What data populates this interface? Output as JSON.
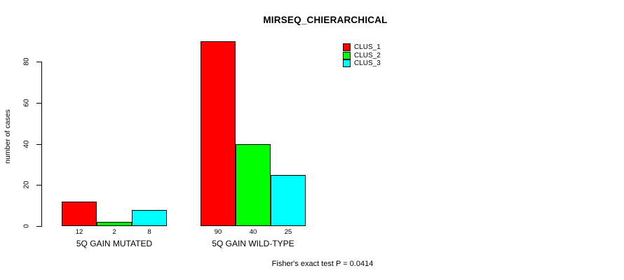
{
  "chart_data": {
    "type": "bar",
    "title": "MIRSEQ_CHIERARCHICAL",
    "xlabel": "",
    "ylabel": "number of cases",
    "ylim": [
      0,
      80
    ],
    "yticks": [
      0,
      20,
      40,
      60,
      80
    ],
    "grid": false,
    "legend_position": "top-right",
    "categories": [
      "5Q GAIN MUTATED",
      "5Q GAIN WILD-TYPE"
    ],
    "series": [
      {
        "name": "CLUS_1",
        "color": "#ff0000",
        "values": [
          12,
          90
        ]
      },
      {
        "name": "CLUS_2",
        "color": "#00ff00",
        "values": [
          2,
          40
        ]
      },
      {
        "name": "CLUS_3",
        "color": "#00ffff",
        "values": [
          8,
          25
        ]
      }
    ],
    "annotation": "Fisher's exact test P = 0.0414",
    "bar_border_color": "#000000",
    "axis_color": "#000000",
    "background": "#ffffff"
  }
}
